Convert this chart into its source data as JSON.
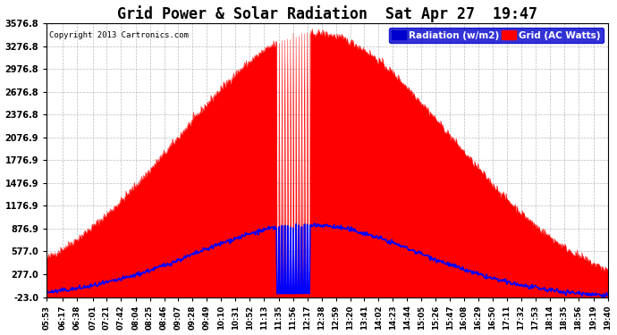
{
  "title": "Grid Power & Solar Radiation  Sat Apr 27  19:47",
  "copyright": "Copyright 2013 Cartronics.com",
  "legend_radiation": "Radiation (w/m2)",
  "legend_grid": "Grid (AC Watts)",
  "yticks": [
    -23.0,
    277.0,
    577.0,
    876.9,
    1176.9,
    1476.9,
    1776.9,
    2076.9,
    2376.8,
    2676.8,
    2976.8,
    3276.8,
    3576.8
  ],
  "ymin": -23.0,
  "ymax": 3576.8,
  "bg_color": "#ffffff",
  "plot_bg_color": "#ffffff",
  "grid_color": "#aaaaaa",
  "radiation_fill_color": "#ff0000",
  "grid_line_color": "#0000ff",
  "legend_rad_color": "#0000cc",
  "legend_grid_color": "#ff0000",
  "xtick_labels": [
    "05:53",
    "06:17",
    "06:38",
    "07:01",
    "07:21",
    "07:42",
    "08:04",
    "08:25",
    "08:46",
    "09:07",
    "09:28",
    "09:49",
    "10:10",
    "10:31",
    "10:52",
    "11:13",
    "11:35",
    "11:56",
    "12:17",
    "12:38",
    "12:59",
    "13:20",
    "13:41",
    "14:02",
    "14:23",
    "14:44",
    "15:05",
    "15:26",
    "15:47",
    "16:08",
    "16:29",
    "16:50",
    "17:11",
    "17:32",
    "17:53",
    "18:14",
    "18:35",
    "18:56",
    "19:19",
    "19:40"
  ]
}
